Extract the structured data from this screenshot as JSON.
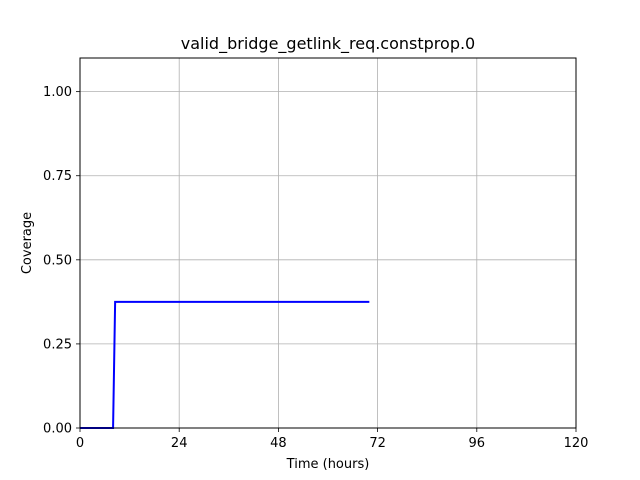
{
  "chart_data": {
    "type": "line",
    "title": "valid_bridge_getlink_req.constprop.0",
    "xlabel": "Time (hours)",
    "ylabel": "Coverage",
    "xlim": [
      0,
      120
    ],
    "ylim": [
      0,
      1.1
    ],
    "xticks": [
      0,
      24,
      48,
      72,
      96,
      120
    ],
    "xtick_labels": [
      "0",
      "24",
      "48",
      "72",
      "96",
      "120"
    ],
    "yticks": [
      0,
      0.25,
      0.5,
      0.75,
      1.0
    ],
    "ytick_labels": [
      "0.00",
      "0.25",
      "0.50",
      "0.75",
      "1.00"
    ],
    "grid": true,
    "series": [
      {
        "color": "#0000ff",
        "x": [
          0,
          8,
          8.5,
          70
        ],
        "y": [
          0,
          0,
          0.375,
          0.375
        ]
      }
    ]
  }
}
